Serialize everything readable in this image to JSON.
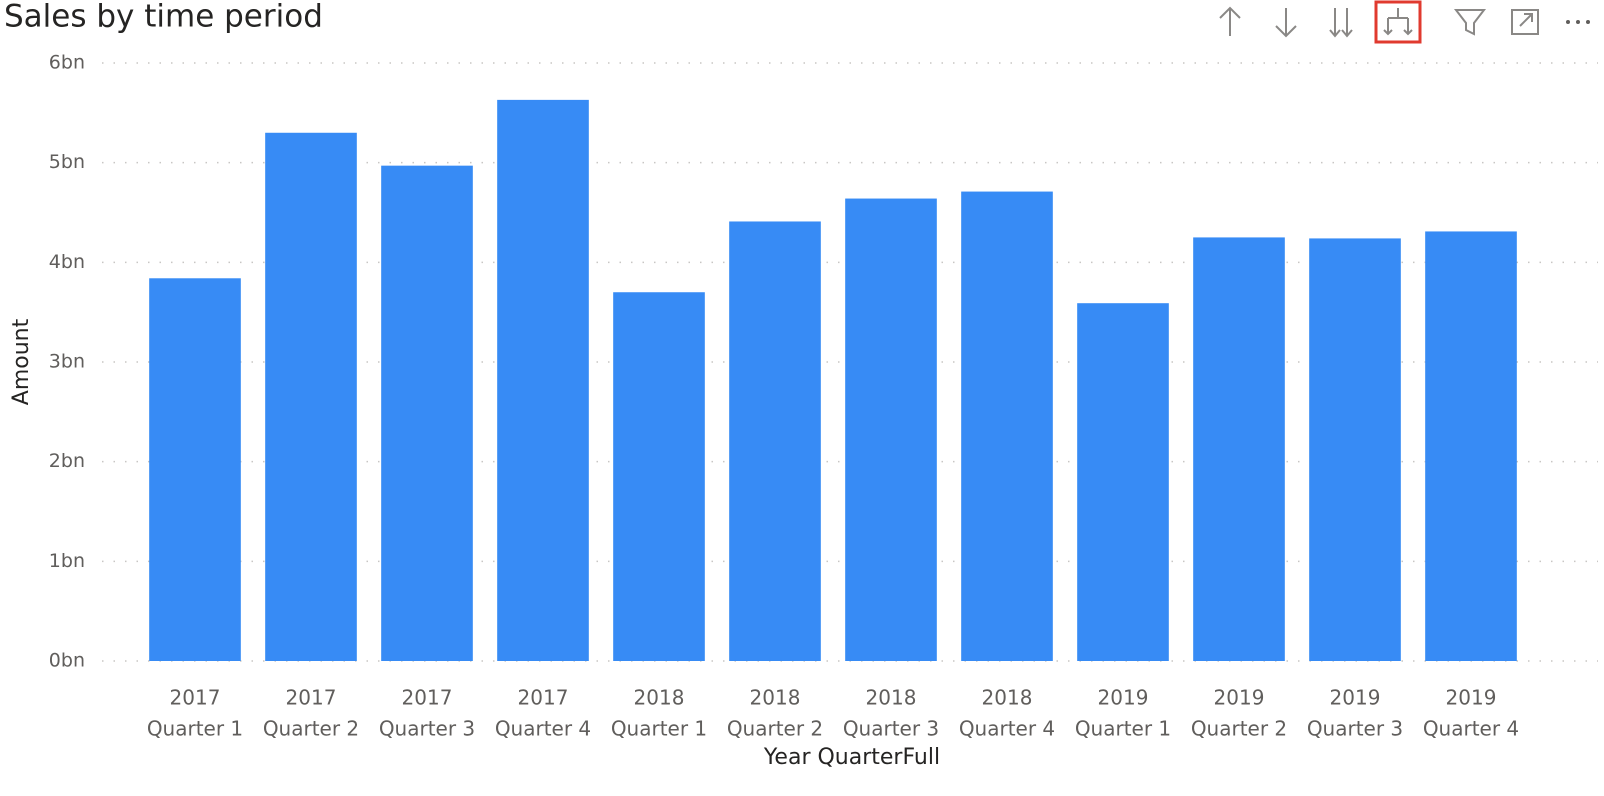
{
  "chart_data": {
    "type": "bar",
    "title": "Sales by time period",
    "x_label": "Year QuarterFull",
    "y_label": "Amount",
    "categories": [
      [
        "2017",
        "Quarter 1"
      ],
      [
        "2017",
        "Quarter 2"
      ],
      [
        "2017",
        "Quarter 3"
      ],
      [
        "2017",
        "Quarter 4"
      ],
      [
        "2018",
        "Quarter 1"
      ],
      [
        "2018",
        "Quarter 2"
      ],
      [
        "2018",
        "Quarter 3"
      ],
      [
        "2018",
        "Quarter 4"
      ],
      [
        "2019",
        "Quarter 1"
      ],
      [
        "2019",
        "Quarter 2"
      ],
      [
        "2019",
        "Quarter 3"
      ],
      [
        "2019",
        "Quarter 4"
      ]
    ],
    "values": [
      3.84,
      5.3,
      4.97,
      5.63,
      3.7,
      4.41,
      4.64,
      4.71,
      3.59,
      4.25,
      4.24,
      4.31
    ],
    "color": "#378bf5",
    "ylim": [
      0,
      6
    ],
    "yticks": [
      {
        "value": 0,
        "label": "0bn"
      },
      {
        "value": 1,
        "label": "1bn"
      },
      {
        "value": 2,
        "label": "2bn"
      },
      {
        "value": 3,
        "label": "3bn"
      },
      {
        "value": 4,
        "label": "4bn"
      },
      {
        "value": 5,
        "label": "5bn"
      },
      {
        "value": 6,
        "label": "6bn"
      }
    ],
    "grid": true
  }
}
